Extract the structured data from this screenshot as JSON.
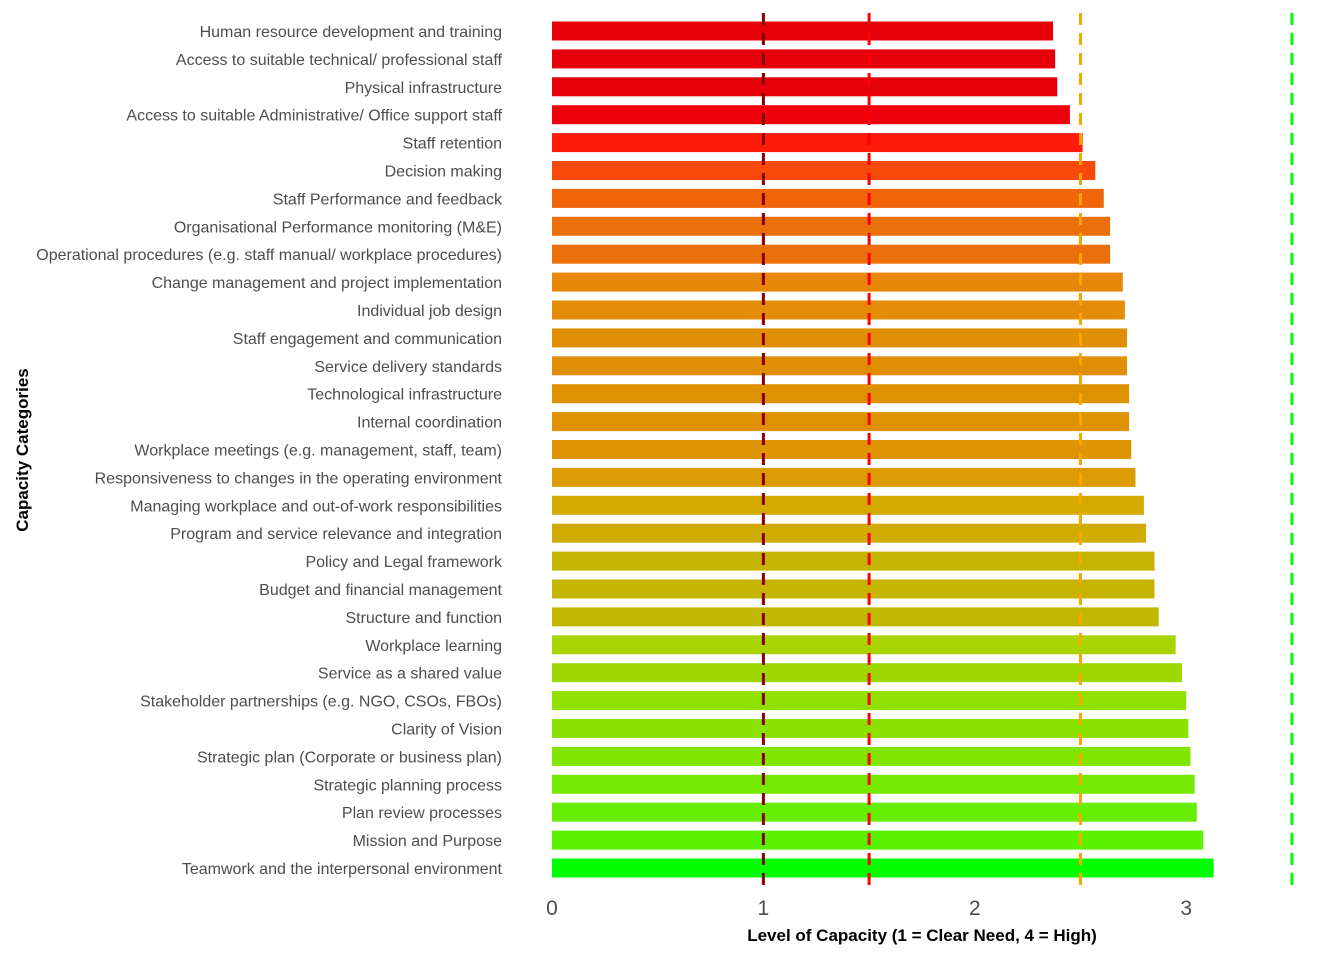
{
  "chart_data": {
    "type": "bar",
    "orientation": "horizontal",
    "xlabel": "Level of Capacity (1 = Clear Need, 4 = High)",
    "ylabel": "Capacity Categories",
    "xlim": [
      0,
      3.5
    ],
    "x_ticks": [
      0,
      1,
      2,
      3
    ],
    "grid": false,
    "legend": "none",
    "categories": [
      "Human resource development and training",
      "Access to suitable technical/ professional staff",
      "Physical infrastructure",
      "Access to suitable Administrative/ Office support staff",
      "Staff retention",
      "Decision making",
      "Staff Performance and feedback",
      "Organisational Performance monitoring (M&E)",
      "Operational procedures (e.g. staff manual/ workplace procedures)",
      "Change management and project implementation",
      "Individual job design",
      "Staff engagement and communication",
      "Service delivery standards",
      "Technological infrastructure",
      "Internal coordination",
      "Workplace meetings (e.g. management, staff, team)",
      "Responsiveness to changes in the operating environment",
      "Managing workplace and out-of-work responsibilities",
      "Program and service relevance and integration",
      "Policy and Legal framework",
      "Budget and financial management",
      "Structure and function",
      "Workplace learning",
      "Service as a shared value",
      "Stakeholder partnerships (e.g. NGO, CSOs, FBOs)",
      "Clarity of Vision",
      "Strategic plan (Corporate or business plan)",
      "Strategic planning process",
      "Plan review processes",
      "Mission and Purpose",
      "Teamwork and the interpersonal environment"
    ],
    "values": [
      2.37,
      2.38,
      2.39,
      2.45,
      2.51,
      2.57,
      2.61,
      2.64,
      2.64,
      2.7,
      2.71,
      2.72,
      2.72,
      2.73,
      2.73,
      2.74,
      2.76,
      2.8,
      2.81,
      2.85,
      2.85,
      2.87,
      2.95,
      2.98,
      3.0,
      3.01,
      3.02,
      3.04,
      3.05,
      3.08,
      3.13
    ],
    "colors": [
      "#e6000a",
      "#e6000a",
      "#e6000a",
      "#f0000d",
      "#ff1a0a",
      "#f74a0a",
      "#f0650a",
      "#ec700a",
      "#ec700a",
      "#e8860a",
      "#e38c08",
      "#e08f05",
      "#e08f05",
      "#df9104",
      "#df9104",
      "#de9404",
      "#dc9a03",
      "#d4aa02",
      "#d0ac02",
      "#c6b402",
      "#c6b402",
      "#c0b802",
      "#a8d402",
      "#9ed802",
      "#90e002",
      "#8ae202",
      "#80e602",
      "#74ea02",
      "#66ee02",
      "#58f202",
      "#00ff00"
    ],
    "reference_lines": [
      {
        "value": 1.0,
        "color": "#8b0000",
        "style": "dashed"
      },
      {
        "value": 1.5,
        "color": "#ff0000",
        "style": "dashed"
      },
      {
        "value": 2.5,
        "color": "#ffa500",
        "style": "dashed"
      },
      {
        "value": 3.5,
        "color": "#00ff00",
        "style": "dashed"
      }
    ]
  }
}
